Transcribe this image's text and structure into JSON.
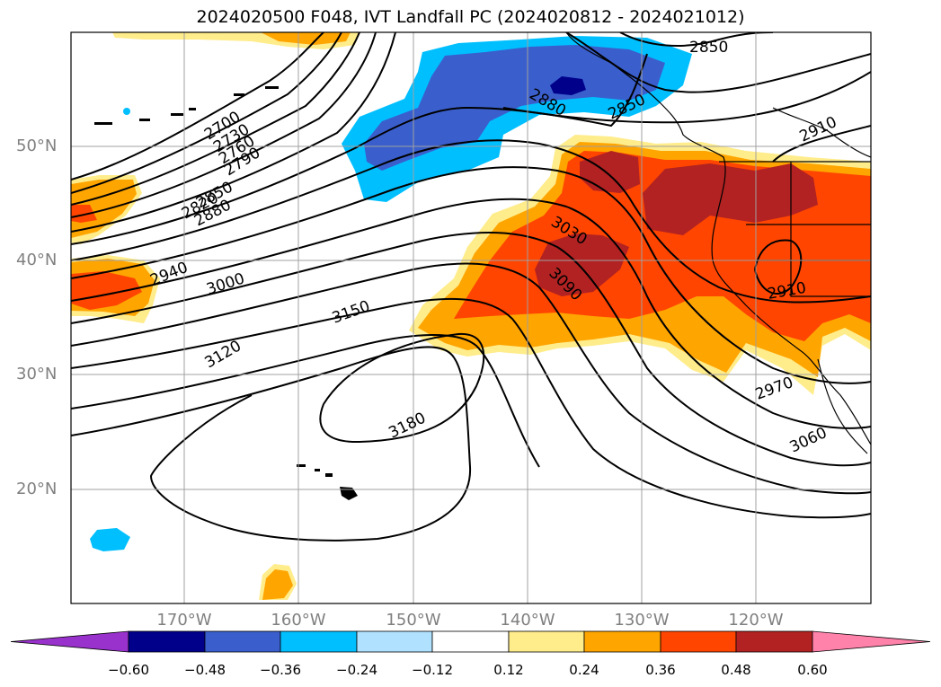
{
  "title": "2024020500 F048, IVT Landfall PC (2024020812 - 2024021012)",
  "lat_labels": [
    "50°N",
    "40°N",
    "30°N",
    "20°N"
  ],
  "lon_labels": [
    "170°W",
    "160°W",
    "150°W",
    "140°W",
    "130°W",
    "120°W"
  ],
  "contour_labels": [
    "2700",
    "2730",
    "2760",
    "2790",
    "2820",
    "2850",
    "2880",
    "2940",
    "3000",
    "3030",
    "3090",
    "3120",
    "3150",
    "3180",
    "2850",
    "2880",
    "2850",
    "2910",
    "2910",
    "2970",
    "3060"
  ],
  "colorbar": {
    "ticks": [
      "−0.60",
      "−0.48",
      "−0.36",
      "−0.24",
      "−0.12",
      "0.12",
      "0.24",
      "0.36",
      "0.48",
      "0.60"
    ],
    "colors": [
      "#9932CC",
      "#00008B",
      "#3A5FCD",
      "#00BFFF",
      "#B0E2FF",
      "#FFFFFF",
      "#FFEC8B",
      "#FFA500",
      "#FF4500",
      "#B22222",
      "#FF82AB"
    ]
  }
}
